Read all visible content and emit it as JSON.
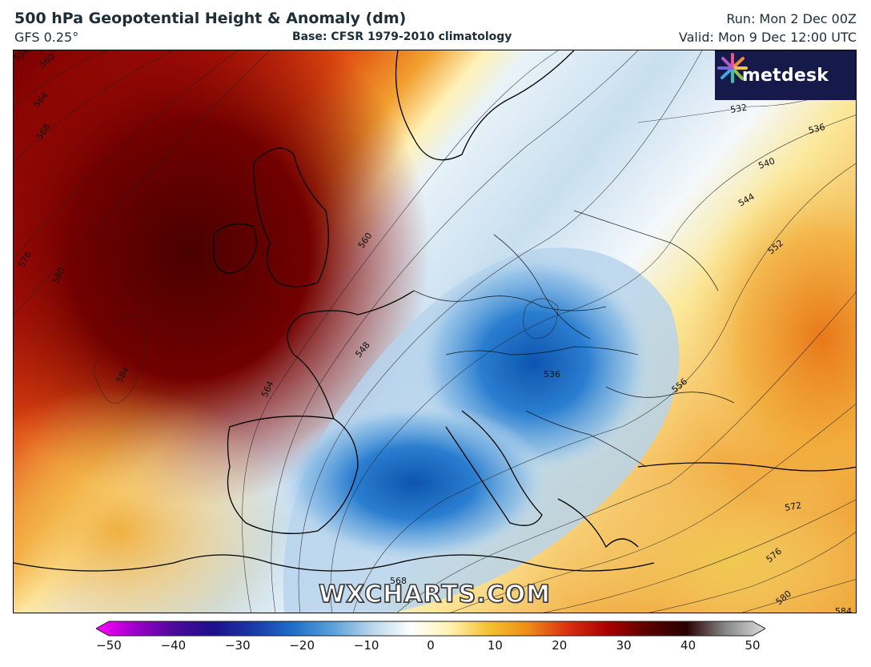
{
  "header": {
    "title": "500 hPa Geopotential Height & Anomaly (dm)",
    "model": "GFS 0.25°",
    "base": "Base: CFSR 1979-2010 climatology",
    "run": "Run: Mon 2 Dec 00Z",
    "valid": "Valid: Mon 9 Dec 12:00 UTC"
  },
  "logo": {
    "text": "metdesk",
    "icon": "metdesk-burst-icon",
    "background": "#151a4a"
  },
  "watermark": "WXCHARTS.COM",
  "map": {
    "contour_labels": [
      "556",
      "560",
      "564",
      "568",
      "576",
      "580",
      "584",
      "584",
      "560",
      "548",
      "564",
      "536",
      "532",
      "536",
      "540",
      "544",
      "552",
      "556",
      "572",
      "576",
      "580",
      "584",
      "568"
    ],
    "anomaly_centers": [
      {
        "kind": "negative",
        "color": "#1565c0"
      },
      {
        "kind": "positive",
        "color": "#5a0000"
      }
    ]
  },
  "colorbar": {
    "min": -50,
    "max": 50,
    "ticks": [
      "−50",
      "−40",
      "−30",
      "−20",
      "−10",
      "0",
      "10",
      "20",
      "30",
      "40",
      "50"
    ],
    "stops": [
      "#ff00ff",
      "#9c00c8",
      "#4a0a9a",
      "#1d0f8a",
      "#1a3aa8",
      "#1e6ec8",
      "#5aa0d8",
      "#b8d6ec",
      "#ffffff",
      "#fff2b0",
      "#f4c030",
      "#ec8a18",
      "#d83010",
      "#a80000",
      "#5a0000",
      "#2a0000",
      "#888888",
      "#dddddd"
    ]
  }
}
